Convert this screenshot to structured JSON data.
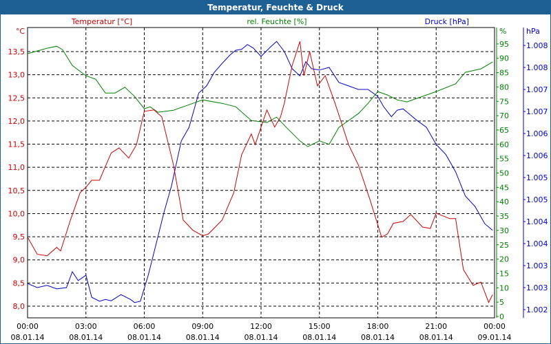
{
  "window": {
    "title": "Temperatur, Feuchte & Druck"
  },
  "chart_data": {
    "type": "line",
    "title": "Temperatur, Feuchte & Druck",
    "x_unit": "hours since 08.01.14 00:00",
    "x_ticks": [
      {
        "h": 0,
        "time": "00:00",
        "date": "08.01.14"
      },
      {
        "h": 3,
        "time": "03:00",
        "date": "08.01.14"
      },
      {
        "h": 6,
        "time": "06:00",
        "date": "08.01.14"
      },
      {
        "h": 9,
        "time": "09:00",
        "date": "08.01.14"
      },
      {
        "h": 12,
        "time": "12:00",
        "date": "08.01.14"
      },
      {
        "h": 15,
        "time": "15:00",
        "date": "08.01.14"
      },
      {
        "h": 18,
        "time": "18:00",
        "date": "08.01.14"
      },
      {
        "h": 21,
        "time": "21:00",
        "date": "08.01.14"
      },
      {
        "h": 24,
        "time": "00:00",
        "date": "09.01.14"
      }
    ],
    "grid": true,
    "axes": {
      "temperature": {
        "label": "Temperatur [°C]",
        "unit": "°C",
        "color": "#cc0000",
        "range": [
          7.75,
          14.0
        ],
        "ticks": [
          "13,5",
          "13,0",
          "12,5",
          "12,0",
          "11,5",
          "11,0",
          "10,5",
          "10,0",
          "9,5",
          "9,0",
          "8,5",
          "8,0"
        ],
        "tick_values": [
          13.5,
          13,
          12.5,
          12,
          11.5,
          11,
          10.5,
          10,
          9.5,
          9,
          8.5,
          8
        ]
      },
      "humidity": {
        "label": "rel. Feuchte [%]",
        "unit": "%",
        "color": "#008000",
        "range": [
          0,
          100
        ],
        "ticks": [
          "95",
          "90",
          "85",
          "80",
          "75",
          "70",
          "65",
          "60",
          "55",
          "50",
          "45",
          "40",
          "35",
          "30",
          "25",
          "20",
          "15",
          "10",
          "5",
          "0"
        ],
        "tick_values": [
          95,
          90,
          85,
          80,
          75,
          70,
          65,
          60,
          55,
          50,
          45,
          40,
          35,
          30,
          25,
          20,
          15,
          10,
          5,
          0
        ]
      },
      "pressure": {
        "label": "Druck [hPa]",
        "unit": "hPa",
        "color": "#0000cc",
        "range": [
          1.0018,
          1.0086
        ],
        "ticks": [
          "1.008",
          "1.008",
          "1.007",
          "1.007",
          "1.006",
          "1.006",
          "1.005",
          "1.005",
          "1.004",
          "1.004",
          "1.003",
          "1.003",
          "1.002"
        ],
        "tick_values": [
          1.008,
          1.0075,
          1.007,
          1.0065,
          1.006,
          1.0055,
          1.005,
          1.0045,
          1.004,
          1.0035,
          1.003,
          1.0025,
          1.002
        ]
      }
    },
    "series": [
      {
        "name": "Temperatur [°C]",
        "axis": "temperature",
        "color": "#cc0000",
        "x": [
          0,
          0.5,
          1,
          1.5,
          1.7,
          2.2,
          2.7,
          3,
          3.3,
          3.7,
          4,
          4.3,
          4.7,
          5.2,
          5.6,
          6,
          6.5,
          6.9,
          7.5,
          8,
          8.5,
          9,
          9.3,
          10,
          10.6,
          11,
          11.5,
          11.7,
          12.3,
          12.7,
          13,
          13.2,
          13.6,
          14,
          14.2,
          14.5,
          14.9,
          15.3,
          15.8,
          16.5,
          17,
          17.6,
          18.2,
          18.5,
          18.8,
          19.3,
          19.7,
          20.3,
          20.7,
          21,
          21.7,
          22,
          22.4,
          22.9,
          23.3,
          23.7,
          23.9
        ],
        "y": [
          9.49,
          9.12,
          9.09,
          9.27,
          9.19,
          9.86,
          10.45,
          10.57,
          10.72,
          10.72,
          11.02,
          11.31,
          11.42,
          11.2,
          11.49,
          12.21,
          12.24,
          12.09,
          11.05,
          9.86,
          9.64,
          9.52,
          9.56,
          9.86,
          10.45,
          11.27,
          11.72,
          11.49,
          12.24,
          11.87,
          12.09,
          12.39,
          13.2,
          13.72,
          12.98,
          13.5,
          12.76,
          12.98,
          12.39,
          11.49,
          11.05,
          10.3,
          9.49,
          9.56,
          9.79,
          9.83,
          9.98,
          9.71,
          9.68,
          10.01,
          9.89,
          9.89,
          8.79,
          8.45,
          8.52,
          8.08,
          8.25
        ]
      },
      {
        "name": "rel. Feuchte [%]",
        "axis": "humidity",
        "color": "#008000",
        "x": [
          0,
          1,
          1.5,
          1.8,
          2.3,
          3,
          3.5,
          4,
          4.5,
          5,
          5.5,
          6,
          6.3,
          6.7,
          7.5,
          8,
          9,
          10,
          10.7,
          11.5,
          12.3,
          12.8,
          13.3,
          14,
          14.4,
          15,
          15.5,
          16,
          17,
          17.5,
          18,
          18.5,
          19,
          19.5,
          20,
          21,
          22,
          22.5,
          23.3,
          23.9
        ],
        "y": [
          91.6,
          93.5,
          94.2,
          93.0,
          87.5,
          83.9,
          82.7,
          77.9,
          77.9,
          79.9,
          76.7,
          72.4,
          73.1,
          71.2,
          71.9,
          73.1,
          75.5,
          74.3,
          73.1,
          68.3,
          67.6,
          69.5,
          65.9,
          61.2,
          59.2,
          61.2,
          60.0,
          65.9,
          70.7,
          74.3,
          78.4,
          77.2,
          75.5,
          74.8,
          76.0,
          78.4,
          81.1,
          85.1,
          86.3,
          88.7
        ]
      },
      {
        "name": "Druck [hPa]",
        "axis": "pressure",
        "color": "#0000cc",
        "x": [
          0,
          0.5,
          1,
          1.5,
          2,
          2.3,
          2.6,
          3,
          3.3,
          3.7,
          4,
          4.3,
          4.8,
          5.3,
          5.5,
          5.8,
          6.2,
          6.6,
          7,
          7.4,
          7.9,
          8.3,
          8.8,
          9.2,
          9.6,
          10,
          10.4,
          10.7,
          11,
          11.3,
          11.6,
          12,
          12.5,
          12.8,
          13.2,
          13.6,
          14,
          14.3,
          14.6,
          15,
          15.5,
          16,
          16.5,
          17,
          17.5,
          18,
          18.3,
          18.7,
          19,
          19.3,
          19.6,
          20,
          20.5,
          21,
          21.5,
          22,
          22.5,
          23,
          23.5,
          23.9
        ],
        "y": [
          1.00259,
          1.0025,
          1.00255,
          1.00247,
          1.0025,
          1.00286,
          1.00266,
          1.00278,
          1.00228,
          1.00219,
          1.00223,
          1.0022,
          1.00234,
          1.00223,
          1.00216,
          1.00219,
          1.00278,
          1.00348,
          1.00419,
          1.00481,
          1.00583,
          1.00614,
          1.00692,
          1.00708,
          1.00739,
          1.00759,
          1.00778,
          1.00789,
          1.00791,
          1.00802,
          1.00794,
          1.00775,
          1.00797,
          1.00809,
          1.00786,
          1.00747,
          1.00731,
          1.00763,
          1.00747,
          1.00744,
          1.0075,
          1.00716,
          1.00708,
          1.007,
          1.007,
          1.00684,
          1.00661,
          1.00638,
          1.00653,
          1.00656,
          1.00645,
          1.0063,
          1.00614,
          1.00575,
          1.00552,
          1.00513,
          1.00458,
          1.00434,
          1.00395,
          1.0038
        ]
      }
    ]
  }
}
